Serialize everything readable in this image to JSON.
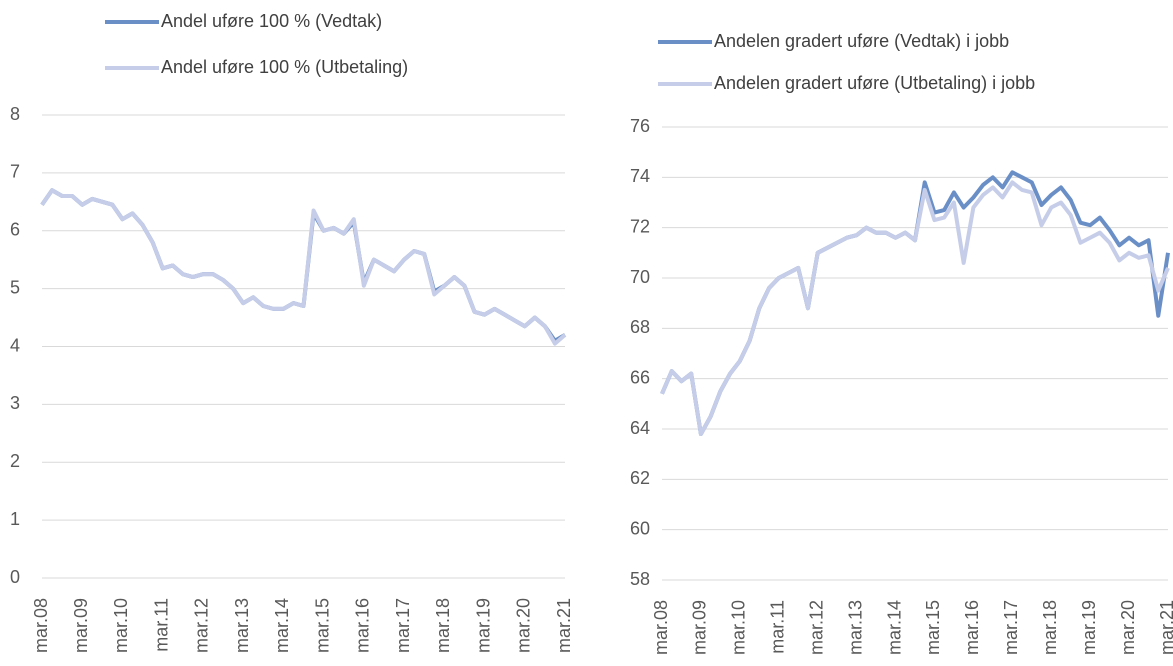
{
  "chart_data": [
    {
      "type": "line",
      "categories": [
        "mar.08",
        null,
        null,
        null,
        "mar.09",
        null,
        null,
        null,
        "mar.10",
        null,
        null,
        null,
        "mar.11",
        null,
        null,
        null,
        "mar.12",
        null,
        null,
        null,
        "mar.13",
        null,
        null,
        null,
        "mar.14",
        null,
        null,
        null,
        "mar.15",
        null,
        null,
        null,
        "mar.16",
        null,
        null,
        null,
        "mar.17",
        null,
        null,
        null,
        "mar.18",
        null,
        null,
        null,
        "mar.19",
        null,
        null,
        null,
        "mar.20",
        null,
        null,
        null,
        "mar.21"
      ],
      "series": [
        {
          "name": "Andel uføre 100 % (Vedtak)",
          "color": "#6a8fc7",
          "values": [
            6.45,
            6.7,
            6.6,
            6.6,
            6.45,
            6.55,
            6.5,
            6.45,
            6.2,
            6.3,
            6.1,
            5.8,
            5.35,
            5.4,
            5.25,
            5.2,
            5.25,
            5.25,
            5.15,
            5.0,
            4.75,
            4.85,
            4.7,
            4.65,
            4.65,
            4.75,
            4.7,
            6.3,
            6.0,
            6.05,
            5.95,
            6.15,
            5.1,
            5.5,
            5.4,
            5.3,
            5.5,
            5.65,
            5.6,
            4.95,
            5.05,
            5.2,
            5.05,
            4.6,
            4.55,
            4.65,
            4.55,
            4.45,
            4.35,
            4.5,
            4.35,
            4.1,
            4.2
          ]
        },
        {
          "name": "Andel uføre 100 % (Utbetaling)",
          "color": "#c5cde8",
          "values": [
            6.45,
            6.7,
            6.6,
            6.6,
            6.45,
            6.55,
            6.5,
            6.45,
            6.2,
            6.3,
            6.1,
            5.8,
            5.35,
            5.4,
            5.25,
            5.2,
            5.25,
            5.25,
            5.15,
            5.0,
            4.75,
            4.85,
            4.7,
            4.65,
            4.65,
            4.75,
            4.7,
            6.35,
            6.0,
            6.05,
            5.95,
            6.2,
            5.05,
            5.5,
            5.4,
            5.3,
            5.5,
            5.65,
            5.6,
            4.9,
            5.05,
            5.2,
            5.05,
            4.6,
            4.55,
            4.65,
            4.55,
            4.45,
            4.35,
            4.5,
            4.35,
            4.05,
            4.2
          ]
        }
      ],
      "ylim": [
        0,
        8
      ],
      "yticks": [
        0,
        1,
        2,
        3,
        4,
        5,
        6,
        7,
        8
      ],
      "grid": true
    },
    {
      "type": "line",
      "categories": [
        "mar.08",
        null,
        null,
        null,
        "mar.09",
        null,
        null,
        null,
        "mar.10",
        null,
        null,
        null,
        "mar.11",
        null,
        null,
        null,
        "mar.12",
        null,
        null,
        null,
        "mar.13",
        null,
        null,
        null,
        "mar.14",
        null,
        null,
        null,
        "mar.15",
        null,
        null,
        null,
        "mar.16",
        null,
        null,
        null,
        "mar.17",
        null,
        null,
        null,
        "mar.18",
        null,
        null,
        null,
        "mar.19",
        null,
        null,
        null,
        "mar.20",
        null,
        null,
        null,
        "mar.21"
      ],
      "series": [
        {
          "name": "Andelen gradert uføre (Vedtak) i jobb",
          "color": "#6a8fc7",
          "values": [
            65.4,
            66.3,
            65.9,
            66.2,
            63.8,
            64.5,
            65.5,
            66.2,
            66.7,
            67.5,
            68.8,
            69.6,
            70.0,
            70.2,
            70.4,
            68.8,
            71.0,
            71.2,
            71.4,
            71.6,
            71.7,
            72.0,
            71.8,
            71.8,
            71.6,
            71.8,
            71.5,
            73.8,
            72.6,
            72.7,
            73.4,
            72.8,
            73.2,
            73.7,
            74.0,
            73.6,
            74.2,
            74.0,
            73.8,
            72.9,
            73.3,
            73.6,
            73.1,
            72.2,
            72.1,
            72.4,
            71.9,
            71.3,
            71.6,
            71.3,
            71.5,
            68.5,
            71.0
          ]
        },
        {
          "name": "Andelen gradert uføre (Utbetaling) i jobb",
          "color": "#c5cde8",
          "values": [
            65.4,
            66.3,
            65.9,
            66.2,
            63.8,
            64.5,
            65.5,
            66.2,
            66.7,
            67.5,
            68.8,
            69.6,
            70.0,
            70.2,
            70.4,
            68.8,
            71.0,
            71.2,
            71.4,
            71.6,
            71.7,
            72.0,
            71.8,
            71.8,
            71.6,
            71.8,
            71.5,
            73.5,
            72.3,
            72.4,
            73.0,
            70.6,
            72.8,
            73.3,
            73.6,
            73.2,
            73.8,
            73.5,
            73.4,
            72.1,
            72.8,
            73.0,
            72.5,
            71.4,
            71.6,
            71.8,
            71.4,
            70.7,
            71.0,
            70.8,
            70.9,
            69.5,
            70.4
          ]
        }
      ],
      "ylim": [
        58,
        76
      ],
      "yticks": [
        58,
        60,
        62,
        64,
        66,
        68,
        70,
        72,
        74,
        76
      ],
      "grid": true
    }
  ]
}
